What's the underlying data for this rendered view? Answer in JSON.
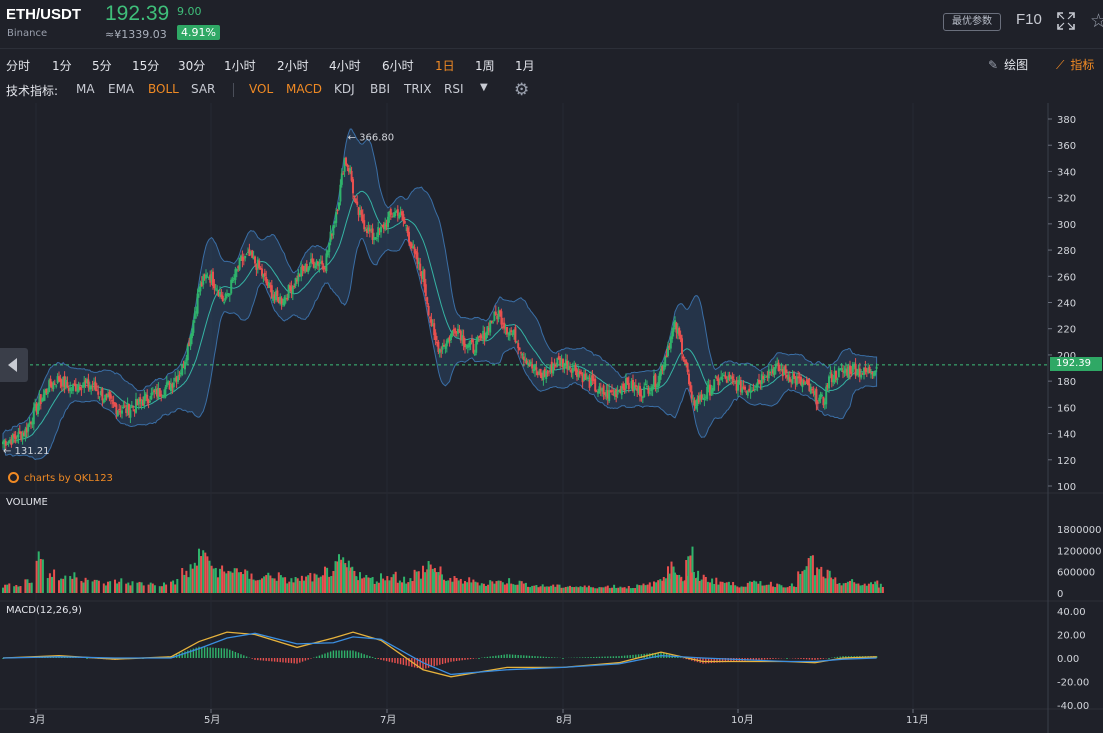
{
  "header": {
    "symbol": "ETH/USDT",
    "exchange": "Binance",
    "price": "192.39",
    "change": "9.00",
    "cny": "≈¥1339.03",
    "change_pct": "4.91%",
    "best_params_label": "最优参数",
    "f10_label": "F10"
  },
  "periods": [
    {
      "label": "分时",
      "active": false
    },
    {
      "label": "1分",
      "active": false
    },
    {
      "label": "5分",
      "active": false
    },
    {
      "label": "15分",
      "active": false
    },
    {
      "label": "30分",
      "active": false
    },
    {
      "label": "1小时",
      "active": false
    },
    {
      "label": "2小时",
      "active": false
    },
    {
      "label": "4小时",
      "active": false
    },
    {
      "label": "6小时",
      "active": false
    },
    {
      "label": "1日",
      "active": true
    },
    {
      "label": "1周",
      "active": false
    },
    {
      "label": "1月",
      "active": false
    }
  ],
  "toolbar": {
    "draw_label": "绘图",
    "indicator_label": "指标"
  },
  "indicators": {
    "label": "技术指标:",
    "main": [
      {
        "label": "MA",
        "on": false
      },
      {
        "label": "EMA",
        "on": false
      },
      {
        "label": "BOLL",
        "on": true
      },
      {
        "label": "SAR",
        "on": false
      }
    ],
    "sub": [
      {
        "label": "VOL",
        "on": true
      },
      {
        "label": "MACD",
        "on": true
      },
      {
        "label": "KDJ",
        "on": false
      },
      {
        "label": "BBI",
        "on": false
      },
      {
        "label": "TRIX",
        "on": false
      },
      {
        "label": "RSI",
        "on": false
      }
    ]
  },
  "chart": {
    "credit": "charts by QKL123",
    "high_label": "← 366.80",
    "low_label": "← 131.21",
    "last_price": "192.39",
    "volume_label": "VOLUME",
    "macd_label": "MACD(12,26,9)",
    "price_ticks": [
      "380",
      "360",
      "340",
      "320",
      "300",
      "280",
      "260",
      "240",
      "220",
      "200",
      "180",
      "160",
      "140",
      "120",
      "100"
    ],
    "volume_ticks": [
      "1800000",
      "1200000",
      "600000",
      "0"
    ],
    "macd_ticks": [
      "40.00",
      "20.00",
      "0.00",
      "-20.00",
      "-40.00"
    ],
    "x_ticks": [
      "3月",
      "5月",
      "7月",
      "8月",
      "10月",
      "11月"
    ]
  },
  "chart_data": {
    "type": "candlestick",
    "symbol": "ETH/USDT",
    "interval": "1日",
    "price_axis": [
      100,
      380
    ],
    "volume_axis": [
      0,
      1800000
    ],
    "macd_axis": [
      -40,
      40
    ],
    "high": 366.8,
    "low": 131.21,
    "last": 192.39,
    "x_ticks": [
      "3月",
      "5月",
      "7月",
      "8月",
      "10月",
      "11月"
    ],
    "close_path": [
      [
        0,
        134
      ],
      [
        8,
        136
      ],
      [
        16,
        142
      ],
      [
        24,
        160
      ],
      [
        32,
        175
      ],
      [
        40,
        182
      ],
      [
        48,
        174
      ],
      [
        56,
        178
      ],
      [
        64,
        176
      ],
      [
        72,
        168
      ],
      [
        80,
        160
      ],
      [
        88,
        158
      ],
      [
        96,
        162
      ],
      [
        104,
        168
      ],
      [
        112,
        172
      ],
      [
        120,
        178
      ],
      [
        128,
        190
      ],
      [
        134,
        215
      ],
      [
        140,
        250
      ],
      [
        146,
        262
      ],
      [
        152,
        254
      ],
      [
        158,
        240
      ],
      [
        164,
        256
      ],
      [
        170,
        272
      ],
      [
        176,
        275
      ],
      [
        182,
        268
      ],
      [
        188,
        255
      ],
      [
        194,
        244
      ],
      [
        200,
        242
      ],
      [
        206,
        252
      ],
      [
        212,
        262
      ],
      [
        218,
        268
      ],
      [
        224,
        272
      ],
      [
        230,
        270
      ],
      [
        236,
        300
      ],
      [
        240,
        320
      ],
      [
        244,
        350
      ],
      [
        248,
        340
      ],
      [
        252,
        312
      ],
      [
        258,
        300
      ],
      [
        264,
        290
      ],
      [
        270,
        295
      ],
      [
        276,
        305
      ],
      [
        282,
        310
      ],
      [
        288,
        298
      ],
      [
        294,
        275
      ],
      [
        300,
        260
      ],
      [
        304,
        235
      ],
      [
        308,
        212
      ],
      [
        312,
        205
      ],
      [
        318,
        212
      ],
      [
        324,
        222
      ],
      [
        330,
        210
      ],
      [
        336,
        205
      ],
      [
        342,
        212
      ],
      [
        348,
        225
      ],
      [
        354,
        232
      ],
      [
        360,
        220
      ],
      [
        366,
        214
      ],
      [
        372,
        200
      ],
      [
        378,
        190
      ],
      [
        384,
        184
      ],
      [
        390,
        188
      ],
      [
        396,
        195
      ],
      [
        402,
        194
      ],
      [
        408,
        190
      ],
      [
        414,
        184
      ],
      [
        420,
        178
      ],
      [
        426,
        172
      ],
      [
        432,
        170
      ],
      [
        438,
        172
      ],
      [
        444,
        178
      ],
      [
        450,
        175
      ],
      [
        456,
        172
      ],
      [
        462,
        176
      ],
      [
        468,
        182
      ],
      [
        472,
        195
      ],
      [
        476,
        210
      ],
      [
        480,
        222
      ],
      [
        484,
        210
      ],
      [
        488,
        192
      ],
      [
        492,
        162
      ],
      [
        496,
        165
      ],
      [
        502,
        170
      ],
      [
        508,
        178
      ],
      [
        514,
        182
      ],
      [
        520,
        180
      ],
      [
        526,
        176
      ],
      [
        532,
        174
      ],
      [
        538,
        178
      ],
      [
        544,
        186
      ],
      [
        550,
        190
      ],
      [
        556,
        188
      ],
      [
        562,
        184
      ],
      [
        568,
        180
      ],
      [
        574,
        176
      ],
      [
        580,
        168
      ],
      [
        586,
        164
      ],
      [
        590,
        182
      ],
      [
        596,
        186
      ],
      [
        602,
        188
      ],
      [
        608,
        190
      ],
      [
        614,
        186
      ],
      [
        620,
        188
      ],
      [
        624,
        192
      ]
    ],
    "volume_bars": [
      [
        0,
        260000
      ],
      [
        8,
        320000
      ],
      [
        16,
        430000
      ],
      [
        24,
        1250000
      ],
      [
        32,
        640000
      ],
      [
        40,
        520000
      ],
      [
        48,
        700000
      ],
      [
        56,
        520000
      ],
      [
        64,
        380000
      ],
      [
        72,
        340000
      ],
      [
        80,
        420000
      ],
      [
        88,
        360000
      ],
      [
        96,
        330000
      ],
      [
        104,
        320000
      ],
      [
        112,
        300000
      ],
      [
        120,
        410000
      ],
      [
        128,
        700000
      ],
      [
        134,
        880000
      ],
      [
        140,
        1500000
      ],
      [
        146,
        1000000
      ],
      [
        152,
        780000
      ],
      [
        158,
        700000
      ],
      [
        164,
        880000
      ],
      [
        170,
        640000
      ],
      [
        176,
        560000
      ],
      [
        182,
        520000
      ],
      [
        188,
        620000
      ],
      [
        194,
        580000
      ],
      [
        200,
        440000
      ],
      [
        206,
        460000
      ],
      [
        212,
        500000
      ],
      [
        218,
        560000
      ],
      [
        224,
        500000
      ],
      [
        230,
        760000
      ],
      [
        236,
        860000
      ],
      [
        240,
        1050000
      ],
      [
        244,
        880000
      ],
      [
        248,
        780000
      ],
      [
        252,
        640000
      ],
      [
        258,
        520000
      ],
      [
        264,
        460000
      ],
      [
        270,
        560000
      ],
      [
        276,
        620000
      ],
      [
        282,
        500000
      ],
      [
        288,
        440000
      ],
      [
        294,
        680000
      ],
      [
        300,
        820000
      ],
      [
        304,
        980000
      ],
      [
        308,
        720000
      ],
      [
        312,
        560000
      ],
      [
        318,
        460000
      ],
      [
        324,
        420000
      ],
      [
        330,
        440000
      ],
      [
        336,
        380000
      ],
      [
        342,
        330000
      ],
      [
        348,
        400000
      ],
      [
        354,
        380000
      ],
      [
        360,
        420000
      ],
      [
        366,
        360000
      ],
      [
        372,
        300000
      ],
      [
        378,
        260000
      ],
      [
        384,
        240000
      ],
      [
        390,
        250000
      ],
      [
        396,
        230000
      ],
      [
        402,
        240000
      ],
      [
        408,
        220000
      ],
      [
        414,
        210000
      ],
      [
        420,
        230000
      ],
      [
        426,
        200000
      ],
      [
        432,
        240000
      ],
      [
        438,
        220000
      ],
      [
        444,
        210000
      ],
      [
        450,
        240000
      ],
      [
        456,
        260000
      ],
      [
        462,
        320000
      ],
      [
        468,
        460000
      ],
      [
        472,
        720000
      ],
      [
        476,
        880000
      ],
      [
        480,
        720000
      ],
      [
        484,
        500000
      ],
      [
        488,
        1370000
      ],
      [
        492,
        600000
      ],
      [
        496,
        540000
      ],
      [
        502,
        480000
      ],
      [
        508,
        420000
      ],
      [
        514,
        360000
      ],
      [
        520,
        300000
      ],
      [
        526,
        280000
      ],
      [
        532,
        330000
      ],
      [
        538,
        360000
      ],
      [
        544,
        320000
      ],
      [
        550,
        300000
      ],
      [
        556,
        280000
      ],
      [
        562,
        260000
      ],
      [
        568,
        640000
      ],
      [
        574,
        1100000
      ],
      [
        580,
        760000
      ],
      [
        586,
        640000
      ],
      [
        590,
        420000
      ],
      [
        596,
        360000
      ],
      [
        602,
        380000
      ],
      [
        608,
        320000
      ],
      [
        614,
        300000
      ],
      [
        620,
        350000
      ],
      [
        624,
        260000
      ]
    ],
    "macd_dif": [
      [
        0,
        0
      ],
      [
        40,
        2
      ],
      [
        80,
        -1
      ],
      [
        120,
        1
      ],
      [
        140,
        14
      ],
      [
        160,
        22
      ],
      [
        180,
        20
      ],
      [
        210,
        9
      ],
      [
        236,
        17
      ],
      [
        250,
        22
      ],
      [
        270,
        15
      ],
      [
        300,
        -10
      ],
      [
        320,
        -16
      ],
      [
        360,
        -8
      ],
      [
        400,
        -8
      ],
      [
        440,
        -4
      ],
      [
        470,
        5
      ],
      [
        500,
        -3
      ],
      [
        560,
        -3
      ],
      [
        580,
        -4
      ],
      [
        600,
        0
      ],
      [
        624,
        1
      ]
    ],
    "macd_dea": [
      [
        0,
        0
      ],
      [
        40,
        1
      ],
      [
        80,
        0
      ],
      [
        120,
        0
      ],
      [
        140,
        8
      ],
      [
        160,
        17
      ],
      [
        180,
        21
      ],
      [
        210,
        12
      ],
      [
        236,
        13
      ],
      [
        250,
        18
      ],
      [
        270,
        16
      ],
      [
        300,
        -4
      ],
      [
        320,
        -14
      ],
      [
        360,
        -10
      ],
      [
        400,
        -8
      ],
      [
        440,
        -5
      ],
      [
        470,
        2
      ],
      [
        500,
        0
      ],
      [
        560,
        -3
      ],
      [
        580,
        -3
      ],
      [
        600,
        -1
      ],
      [
        624,
        0
      ]
    ]
  }
}
